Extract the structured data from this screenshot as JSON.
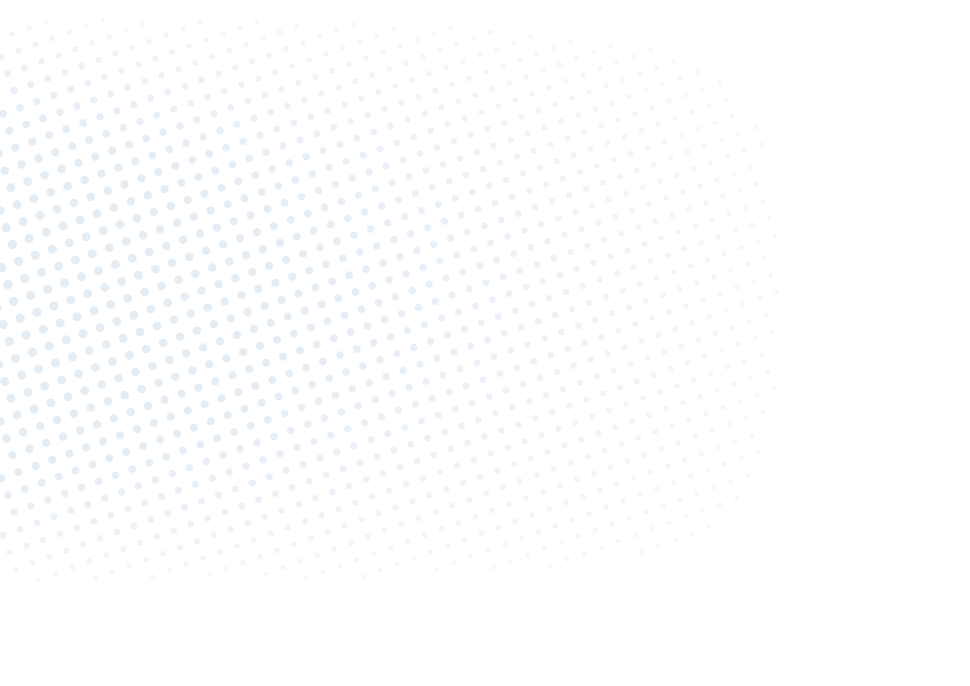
{
  "background": {
    "pattern": "halftone-dots",
    "dot_color": "#eef3f8",
    "base_color": "#ffffff"
  }
}
